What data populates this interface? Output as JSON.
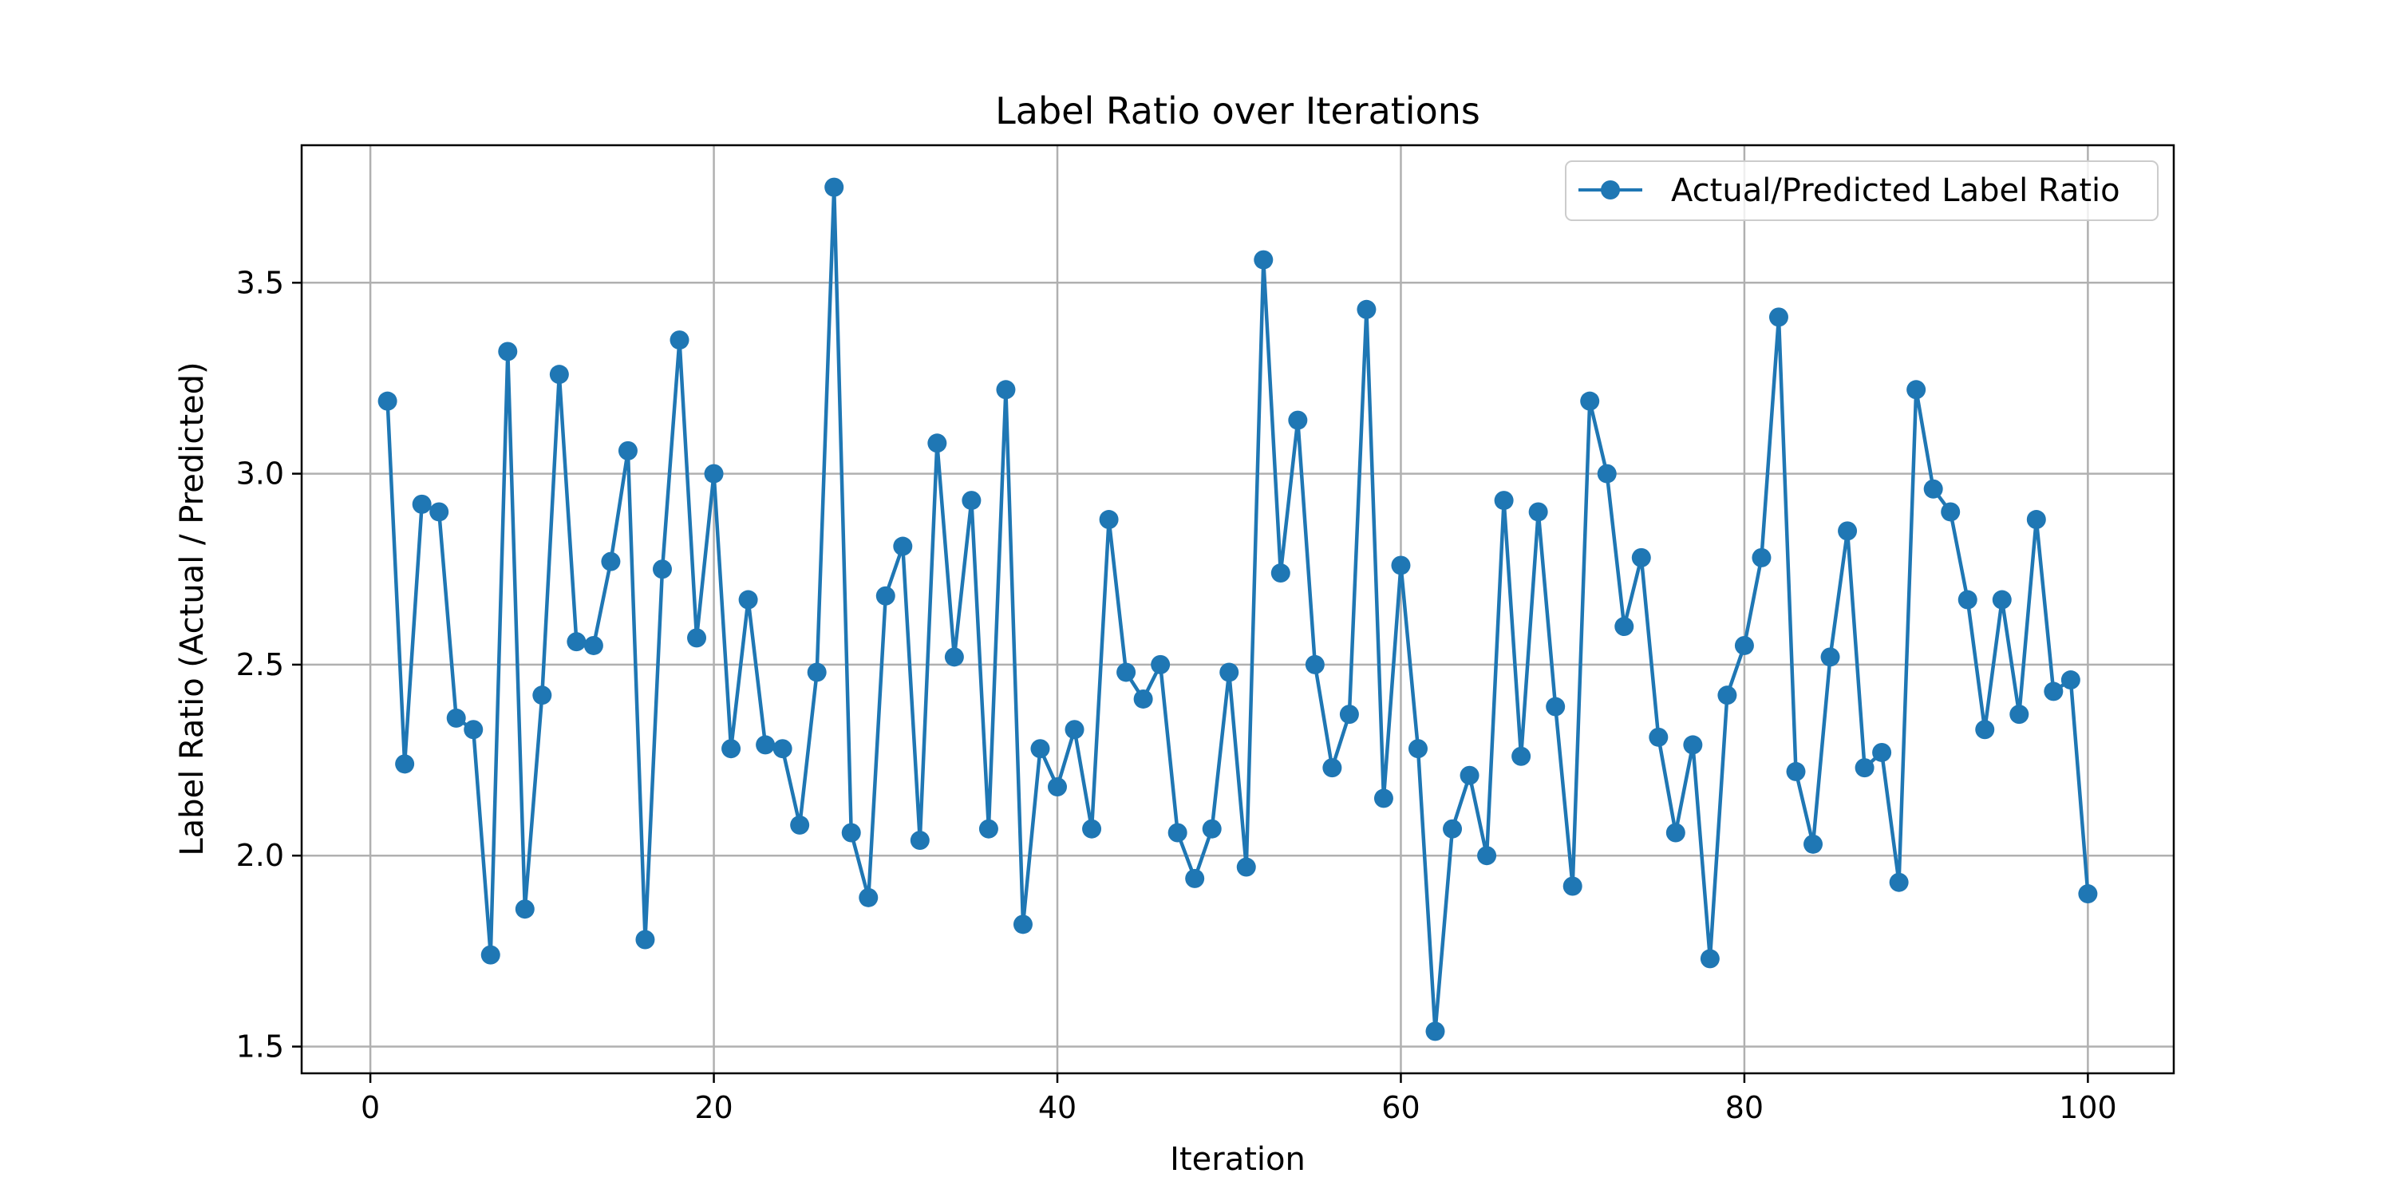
{
  "chart_data": {
    "type": "line",
    "title": "Label Ratio over Iterations",
    "xlabel": "Iteration",
    "ylabel": "Label Ratio (Actual / Predicted)",
    "xlim": [
      -4,
      105
    ],
    "ylim": [
      1.43,
      3.86
    ],
    "xticks": [
      0,
      20,
      40,
      60,
      80,
      100
    ],
    "yticks": [
      1.5,
      2.0,
      2.5,
      3.0,
      3.5
    ],
    "grid": true,
    "legend_position": "top-right",
    "series": [
      {
        "name": "Actual/Predicted Label Ratio",
        "color": "#1f77b4",
        "marker": "circle",
        "x": [
          1,
          2,
          3,
          4,
          5,
          6,
          7,
          8,
          9,
          10,
          11,
          12,
          13,
          14,
          15,
          16,
          17,
          18,
          19,
          20,
          21,
          22,
          23,
          24,
          25,
          26,
          27,
          28,
          29,
          30,
          31,
          32,
          33,
          34,
          35,
          36,
          37,
          38,
          39,
          40,
          41,
          42,
          43,
          44,
          45,
          46,
          47,
          48,
          49,
          50,
          51,
          52,
          53,
          54,
          55,
          56,
          57,
          58,
          59,
          60,
          61,
          62,
          63,
          64,
          65,
          66,
          67,
          68,
          69,
          70,
          71,
          72,
          73,
          74,
          75,
          76,
          77,
          78,
          79,
          80,
          81,
          82,
          83,
          84,
          85,
          86,
          87,
          88,
          89,
          90,
          91,
          92,
          93,
          94,
          95,
          96,
          97,
          98,
          99,
          100
        ],
        "values": [
          3.19,
          2.24,
          2.92,
          2.9,
          2.36,
          2.33,
          1.74,
          3.32,
          1.86,
          2.42,
          3.26,
          2.56,
          2.55,
          2.77,
          3.06,
          1.78,
          2.75,
          3.35,
          2.57,
          3.0,
          2.28,
          2.67,
          2.29,
          2.28,
          2.08,
          2.48,
          3.75,
          2.06,
          1.89,
          2.68,
          2.81,
          2.04,
          3.08,
          2.52,
          2.93,
          2.07,
          3.22,
          1.82,
          2.28,
          2.18,
          2.33,
          2.07,
          2.88,
          2.48,
          2.41,
          2.5,
          2.06,
          1.94,
          2.07,
          2.48,
          1.97,
          3.56,
          2.74,
          3.14,
          2.5,
          2.23,
          2.37,
          3.43,
          2.15,
          2.76,
          2.28,
          1.54,
          2.07,
          2.21,
          2.0,
          2.93,
          2.26,
          2.9,
          2.39,
          1.92,
          3.19,
          3.0,
          2.6,
          2.78,
          2.31,
          2.06,
          2.29,
          1.73,
          2.42,
          2.55,
          2.78,
          3.41,
          2.22,
          2.03,
          2.52,
          2.85,
          2.23,
          2.27,
          1.93,
          3.22,
          2.96,
          2.9,
          2.67,
          2.33,
          2.67,
          2.37,
          2.88,
          2.43,
          2.46,
          1.9
        ]
      }
    ]
  }
}
